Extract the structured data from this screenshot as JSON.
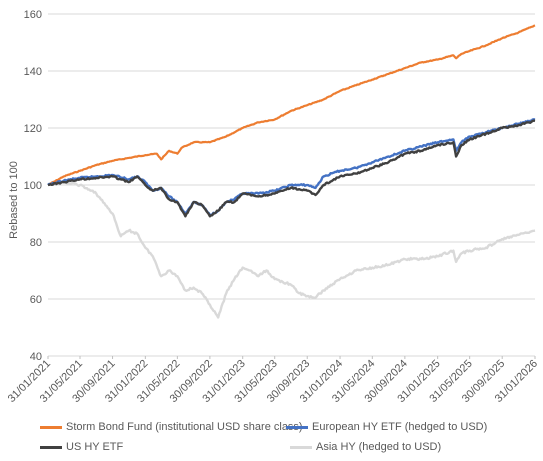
{
  "chart_data": {
    "type": "line",
    "ylabel": "Rebased to 100",
    "xlabel": "",
    "ylim": [
      40,
      160
    ],
    "y_ticks": [
      "40",
      "60",
      "80",
      "100",
      "120",
      "140",
      "160"
    ],
    "x_ticks": [
      "31/01/2021",
      "31/05/2021",
      "30/09/2021",
      "31/01/2022",
      "31/05/2022",
      "30/09/2022",
      "31/01/2023",
      "31/05/2023",
      "30/09/2023",
      "31/01/2024",
      "31/05/2024",
      "30/09/2024",
      "31/01/2025",
      "31/05/2025",
      "30/09/2025",
      "31/01/2026"
    ],
    "x_range": [
      "31/01/2021",
      "31/01/2026"
    ],
    "grid": "horizontal",
    "legend_position": "bottom",
    "series": [
      {
        "name": "Storm Bond Fund (institutional USD share class)",
        "color": "#ED7D31",
        "points": [
          [
            "31/01/2021",
            100
          ],
          [
            "31/03/2021",
            103
          ],
          [
            "31/05/2021",
            105
          ],
          [
            "31/07/2021",
            107
          ],
          [
            "30/09/2021",
            108.5
          ],
          [
            "30/11/2021",
            109.5
          ],
          [
            "31/01/2022",
            110.5
          ],
          [
            "15/03/2022",
            111
          ],
          [
            "31/03/2022",
            109
          ],
          [
            "30/04/2022",
            112
          ],
          [
            "31/05/2022",
            111
          ],
          [
            "15/06/2022",
            113
          ],
          [
            "31/07/2022",
            115
          ],
          [
            "30/09/2022",
            115
          ],
          [
            "30/11/2022",
            117
          ],
          [
            "31/01/2023",
            120
          ],
          [
            "31/03/2023",
            122
          ],
          [
            "31/05/2023",
            123
          ],
          [
            "31/07/2023",
            126
          ],
          [
            "30/09/2023",
            128
          ],
          [
            "30/11/2023",
            130
          ],
          [
            "31/01/2024",
            133
          ],
          [
            "31/03/2024",
            135
          ],
          [
            "31/05/2024",
            137
          ],
          [
            "31/07/2024",
            139
          ],
          [
            "30/09/2024",
            141
          ],
          [
            "30/11/2024",
            143
          ],
          [
            "31/01/2025",
            144
          ],
          [
            "31/03/2025",
            145.5
          ],
          [
            "10/04/2025",
            144.5
          ],
          [
            "30/04/2025",
            146
          ],
          [
            "31/05/2025",
            147
          ],
          [
            "31/07/2025",
            149
          ],
          [
            "30/09/2025",
            151.5
          ],
          [
            "30/11/2025",
            153.5
          ],
          [
            "31/01/2026",
            156
          ]
        ]
      },
      {
        "name": "European HY ETF (hedged to USD)",
        "color": "#4472C4",
        "points": [
          [
            "31/01/2021",
            100
          ],
          [
            "31/03/2021",
            101.5
          ],
          [
            "31/05/2021",
            102.5
          ],
          [
            "31/07/2021",
            103
          ],
          [
            "30/09/2021",
            103.5
          ],
          [
            "30/11/2021",
            102
          ],
          [
            "31/12/2021",
            103
          ],
          [
            "31/01/2022",
            101
          ],
          [
            "28/02/2022",
            98
          ],
          [
            "31/03/2022",
            99
          ],
          [
            "30/04/2022",
            96
          ],
          [
            "31/05/2022",
            94
          ],
          [
            "30/06/2022",
            90
          ],
          [
            "31/07/2022",
            94
          ],
          [
            "31/08/2022",
            93
          ],
          [
            "30/09/2022",
            89.5
          ],
          [
            "31/10/2022",
            91
          ],
          [
            "30/11/2022",
            94
          ],
          [
            "31/12/2022",
            95
          ],
          [
            "31/01/2023",
            97
          ],
          [
            "31/03/2023",
            97
          ],
          [
            "31/05/2023",
            98
          ],
          [
            "31/07/2023",
            100
          ],
          [
            "30/09/2023",
            100
          ],
          [
            "31/10/2023",
            99
          ],
          [
            "30/11/2023",
            103
          ],
          [
            "31/01/2024",
            105
          ],
          [
            "31/03/2024",
            106
          ],
          [
            "31/05/2024",
            108
          ],
          [
            "31/07/2024",
            110
          ],
          [
            "30/09/2024",
            112
          ],
          [
            "30/11/2024",
            113.5
          ],
          [
            "31/01/2025",
            115
          ],
          [
            "31/03/2025",
            116
          ],
          [
            "10/04/2025",
            112
          ],
          [
            "30/04/2025",
            115
          ],
          [
            "31/05/2025",
            117
          ],
          [
            "31/07/2025",
            118.5
          ],
          [
            "30/09/2025",
            120
          ],
          [
            "30/11/2025",
            121.5
          ],
          [
            "31/01/2026",
            123
          ]
        ]
      },
      {
        "name": "US HY ETF",
        "color": "#404040",
        "points": [
          [
            "31/01/2021",
            100
          ],
          [
            "31/03/2021",
            101
          ],
          [
            "31/05/2021",
            102
          ],
          [
            "31/07/2021",
            102.5
          ],
          [
            "30/09/2021",
            103
          ],
          [
            "30/11/2021",
            101
          ],
          [
            "31/12/2021",
            103
          ],
          [
            "31/01/2022",
            100
          ],
          [
            "28/02/2022",
            98
          ],
          [
            "31/03/2022",
            99
          ],
          [
            "30/04/2022",
            95
          ],
          [
            "31/05/2022",
            94
          ],
          [
            "30/06/2022",
            89
          ],
          [
            "31/07/2022",
            94
          ],
          [
            "31/08/2022",
            93
          ],
          [
            "30/09/2022",
            89
          ],
          [
            "31/10/2022",
            91
          ],
          [
            "30/11/2022",
            94
          ],
          [
            "31/12/2022",
            94
          ],
          [
            "31/01/2023",
            97
          ],
          [
            "31/03/2023",
            96
          ],
          [
            "31/05/2023",
            97
          ],
          [
            "31/07/2023",
            99
          ],
          [
            "30/09/2023",
            98
          ],
          [
            "31/10/2023",
            96.5
          ],
          [
            "30/11/2023",
            100
          ],
          [
            "31/01/2024",
            103
          ],
          [
            "31/03/2024",
            104
          ],
          [
            "31/05/2024",
            106
          ],
          [
            "31/07/2024",
            108
          ],
          [
            "30/09/2024",
            111
          ],
          [
            "30/11/2024",
            112
          ],
          [
            "31/01/2025",
            114
          ],
          [
            "31/03/2025",
            115
          ],
          [
            "10/04/2025",
            110
          ],
          [
            "30/04/2025",
            114
          ],
          [
            "31/05/2025",
            116
          ],
          [
            "31/07/2025",
            118
          ],
          [
            "30/09/2025",
            120
          ],
          [
            "30/11/2025",
            121
          ],
          [
            "31/01/2026",
            122.5
          ]
        ]
      },
      {
        "name": "Asia HY (hedged to USD)",
        "color": "#D9D9D9",
        "points": [
          [
            "31/01/2021",
            100
          ],
          [
            "31/03/2021",
            101
          ],
          [
            "31/05/2021",
            100
          ],
          [
            "31/07/2021",
            97
          ],
          [
            "30/09/2021",
            90
          ],
          [
            "31/10/2021",
            82
          ],
          [
            "30/11/2021",
            84
          ],
          [
            "31/12/2021",
            83
          ],
          [
            "31/01/2022",
            78
          ],
          [
            "28/02/2022",
            75
          ],
          [
            "31/03/2022",
            68
          ],
          [
            "30/04/2022",
            70
          ],
          [
            "31/05/2022",
            68
          ],
          [
            "30/06/2022",
            63
          ],
          [
            "31/07/2022",
            64
          ],
          [
            "31/08/2022",
            62
          ],
          [
            "30/09/2022",
            58
          ],
          [
            "31/10/2022",
            53.5
          ],
          [
            "30/11/2022",
            62
          ],
          [
            "31/12/2022",
            67
          ],
          [
            "31/01/2023",
            71
          ],
          [
            "28/02/2023",
            70
          ],
          [
            "31/03/2023",
            68
          ],
          [
            "30/04/2023",
            70
          ],
          [
            "31/05/2023",
            67
          ],
          [
            "30/06/2023",
            66
          ],
          [
            "31/07/2023",
            65
          ],
          [
            "31/08/2023",
            62
          ],
          [
            "30/09/2023",
            61
          ],
          [
            "31/10/2023",
            60.5
          ],
          [
            "30/11/2023",
            63
          ],
          [
            "31/01/2024",
            67
          ],
          [
            "31/03/2024",
            70
          ],
          [
            "31/05/2024",
            71
          ],
          [
            "31/07/2024",
            72
          ],
          [
            "30/09/2024",
            74
          ],
          [
            "30/11/2024",
            74
          ],
          [
            "31/01/2025",
            75
          ],
          [
            "31/03/2025",
            77
          ],
          [
            "10/04/2025",
            73
          ],
          [
            "30/04/2025",
            76
          ],
          [
            "31/05/2025",
            77
          ],
          [
            "31/07/2025",
            78
          ],
          [
            "30/09/2025",
            81
          ],
          [
            "30/11/2025",
            82.5
          ],
          [
            "31/01/2026",
            84
          ]
        ]
      }
    ]
  }
}
